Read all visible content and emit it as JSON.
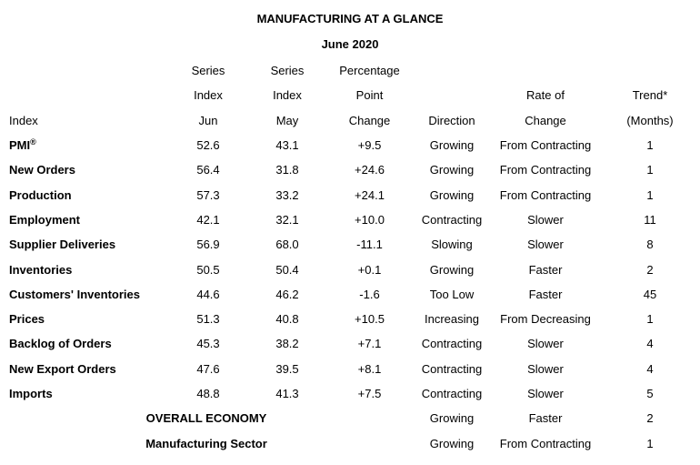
{
  "title": "MANUFACTURING AT A GLANCE",
  "subtitle": "June 2020",
  "header": {
    "index": "Index",
    "jun": [
      "Series",
      "Index",
      "Jun"
    ],
    "may": [
      "Series",
      "Index",
      "May"
    ],
    "change": [
      "Percentage",
      "Point",
      "Change"
    ],
    "direction": "Direction",
    "rate": [
      "Rate of",
      "Change"
    ],
    "trend": [
      "Trend*",
      "(Months)"
    ]
  },
  "rows": [
    {
      "label": "PMI",
      "label_sup": "®",
      "jun": "52.6",
      "may": "43.1",
      "change": "+9.5",
      "direction": "Growing",
      "rate": "From Contracting",
      "trend": "1"
    },
    {
      "label": "New Orders",
      "jun": "56.4",
      "may": "31.8",
      "change": "+24.6",
      "direction": "Growing",
      "rate": "From Contracting",
      "trend": "1"
    },
    {
      "label": "Production",
      "jun": "57.3",
      "may": "33.2",
      "change": "+24.1",
      "direction": "Growing",
      "rate": "From Contracting",
      "trend": "1"
    },
    {
      "label": "Employment",
      "jun": "42.1",
      "may": "32.1",
      "change": "+10.0",
      "direction": "Contracting",
      "rate": "Slower",
      "trend": "11"
    },
    {
      "label": "Supplier Deliveries",
      "jun": "56.9",
      "may": "68.0",
      "change": "-11.1",
      "direction": "Slowing",
      "rate": "Slower",
      "trend": "8"
    },
    {
      "label": "Inventories",
      "jun": "50.5",
      "may": "50.4",
      "change": "+0.1",
      "direction": "Growing",
      "rate": "Faster",
      "trend": "2"
    },
    {
      "label": "Customers' Inventories",
      "jun": "44.6",
      "may": "46.2",
      "change": "-1.6",
      "direction": "Too Low",
      "rate": "Faster",
      "trend": "45"
    },
    {
      "label": "Prices",
      "jun": "51.3",
      "may": "40.8",
      "change": "+10.5",
      "direction": "Increasing",
      "rate": "From Decreasing",
      "trend": "1"
    },
    {
      "label": "Backlog of Orders",
      "jun": "45.3",
      "may": "38.2",
      "change": "+7.1",
      "direction": "Contracting",
      "rate": "Slower",
      "trend": "4"
    },
    {
      "label": "New Export Orders",
      "jun": "47.6",
      "may": "39.5",
      "change": "+8.1",
      "direction": "Contracting",
      "rate": "Slower",
      "trend": "4"
    },
    {
      "label": "Imports",
      "jun": "48.8",
      "may": "41.3",
      "change": "+7.5",
      "direction": "Contracting",
      "rate": "Slower",
      "trend": "5"
    }
  ],
  "summary": [
    {
      "label": "OVERALL ECONOMY",
      "direction": "Growing",
      "rate": "Faster",
      "trend": "2"
    },
    {
      "label": "Manufacturing Sector",
      "direction": "Growing",
      "rate": "From Contracting",
      "trend": "1"
    }
  ]
}
